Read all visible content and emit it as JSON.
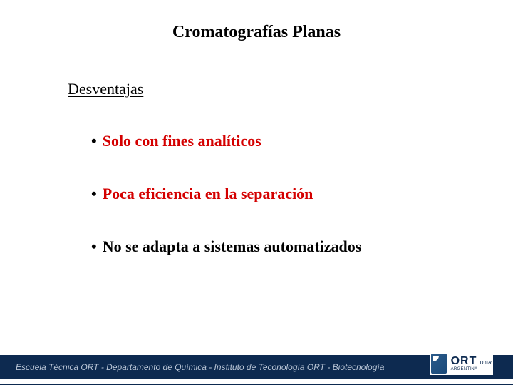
{
  "title": "Cromatografías Planas",
  "subtitle": "Desventajas",
  "bullets": [
    {
      "text": "Solo con fines analíticos",
      "color": "#d40000"
    },
    {
      "text": "Poca eficiencia en la separación",
      "color": "#d40000"
    },
    {
      "text": "No se adapta a sistemas automatizados",
      "color": "#000000"
    }
  ],
  "footer": {
    "text": "Escuela Técnica ORT - Departamento de Química - Instituto de Teconología ORT - Biotecnología",
    "bar_color": "#0d2a50"
  },
  "logo": {
    "main": "ORT",
    "hebrew": "אורט",
    "sub": "ARGENTINA"
  }
}
